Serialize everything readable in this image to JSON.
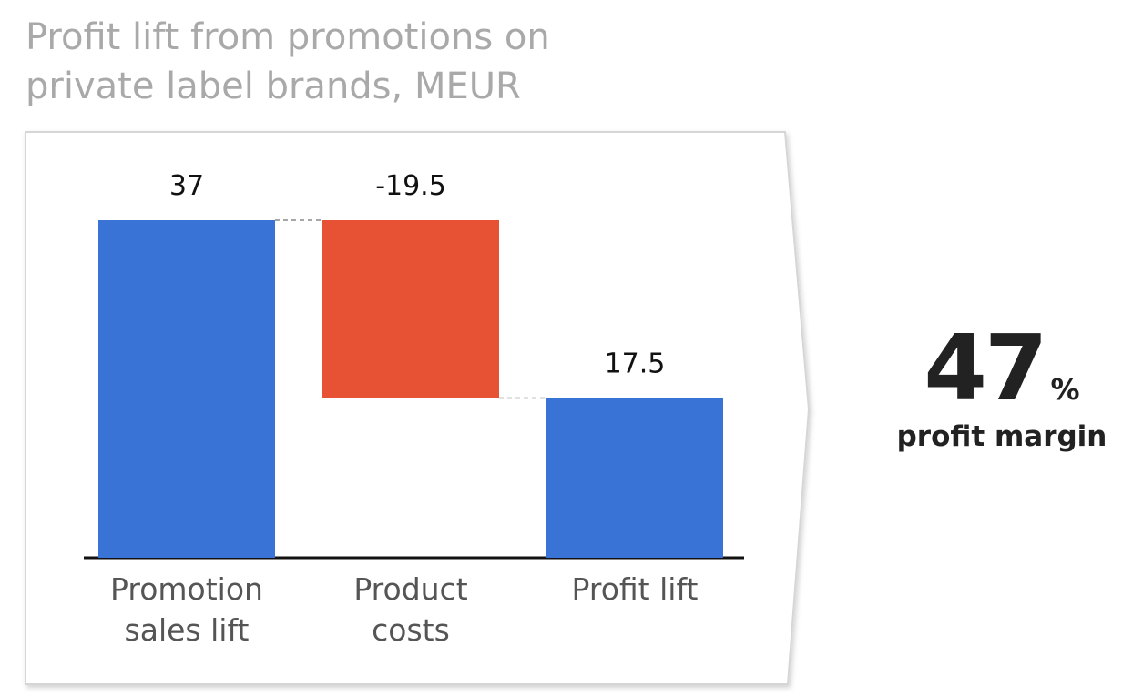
{
  "chart_data": {
    "type": "waterfall",
    "title": "Profit lift from promotions on private label brands, MEUR",
    "categories": [
      "Promotion sales lift",
      "Product costs",
      "Profit lift"
    ],
    "values": [
      37,
      -19.5,
      17.5
    ],
    "measures": [
      "relative",
      "relative",
      "total"
    ],
    "colors": [
      "#3a73d6",
      "#e85234",
      "#3a73d6"
    ],
    "callout": {
      "value": 47,
      "unit": "%",
      "label": "profit margin"
    }
  }
}
